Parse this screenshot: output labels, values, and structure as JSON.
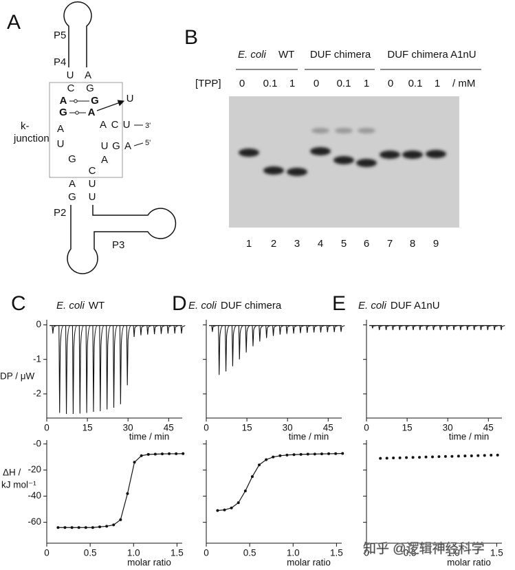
{
  "panel_a": {
    "label": "A",
    "stems": [
      "P5",
      "P4",
      "P2",
      "P3"
    ],
    "junction_label": [
      "k-",
      "junction"
    ],
    "ends": [
      "3'",
      "5'"
    ],
    "nucleotides": [
      "U",
      "A",
      "C",
      "G",
      "A",
      "G",
      "G",
      "A",
      "U",
      "A",
      "C",
      "U",
      "A",
      "U",
      "U",
      "G",
      "A",
      "A",
      "G",
      "C",
      "A",
      "U",
      "G",
      "U"
    ]
  },
  "panel_b": {
    "label": "B",
    "groups": [
      [
        "E. coli",
        "WT"
      ],
      [
        "DUF chimera"
      ],
      [
        "DUF chimera A1nU"
      ]
    ],
    "conc_header": "[TPP]",
    "concentrations": [
      "0",
      "0.1",
      "1",
      "0",
      "0.1",
      "1",
      "0",
      "0.1",
      "1"
    ],
    "unit": "/ mM",
    "lanes": [
      "1",
      "2",
      "3",
      "4",
      "5",
      "6",
      "7",
      "8",
      "9"
    ]
  },
  "chart_data": [
    {
      "type": "thermogram",
      "panel": "C",
      "title_italic": "E. coli",
      "title": "WT",
      "color": "#111",
      "x": [
        2,
        4.5,
        7,
        9.5,
        12,
        14.5,
        17,
        19.5,
        22,
        24.5,
        27,
        29.5,
        32,
        34.5,
        37,
        39.5,
        42,
        44.5,
        47,
        49.5
      ],
      "values": [
        -0.25,
        -2.55,
        -2.58,
        -2.58,
        -2.57,
        -2.55,
        -2.52,
        -2.5,
        -2.45,
        -2.4,
        -2.3,
        -1.75,
        -0.35,
        -0.3,
        -0.28,
        -0.27,
        -0.26,
        -0.25,
        -0.25,
        -0.25
      ],
      "xlim": [
        0,
        50
      ],
      "ylim": [
        -2.7,
        0.15
      ],
      "xticks": [
        0,
        15,
        30,
        45
      ],
      "yticks": [
        0,
        -1,
        -2
      ],
      "ytick_labels": true,
      "xlabel": "time / min",
      "ylabel": "DP / μW"
    },
    {
      "type": "thermogram",
      "panel": "D",
      "title_italic": "E. coli",
      "title": "DUF chimera",
      "color": "#111",
      "x": [
        2,
        4.5,
        7,
        9.5,
        12,
        14.5,
        17,
        19.5,
        22,
        24.5,
        27,
        29.5,
        32,
        34.5,
        37,
        39.5,
        42,
        44.5,
        47,
        49.5
      ],
      "values": [
        -0.2,
        -1.45,
        -1.35,
        -1.2,
        -1.0,
        -0.8,
        -0.62,
        -0.48,
        -0.38,
        -0.32,
        -0.28,
        -0.26,
        -0.25,
        -0.24,
        -0.23,
        -0.22,
        -0.22,
        -0.21,
        -0.21,
        -0.2
      ],
      "xlim": [
        0,
        50
      ],
      "ylim": [
        -2.7,
        0.15
      ],
      "xticks": [
        0,
        15,
        30,
        45
      ],
      "yticks": [
        0,
        -1,
        -2
      ],
      "ytick_labels": false,
      "xlabel": "time / min"
    },
    {
      "type": "thermogram",
      "panel": "E",
      "title_italic": "E. coli",
      "title": "DUF  A1nU",
      "color": "#111",
      "x": [
        2,
        4.5,
        7,
        9.5,
        12,
        14.5,
        17,
        19.5,
        22,
        24.5,
        27,
        29.5,
        32,
        34.5,
        37,
        39.5,
        42,
        44.5,
        47,
        49.5
      ],
      "values": [
        -0.1,
        -0.15,
        -0.15,
        -0.15,
        -0.15,
        -0.15,
        -0.15,
        -0.15,
        -0.15,
        -0.15,
        -0.15,
        -0.15,
        -0.15,
        -0.15,
        -0.15,
        -0.15,
        -0.15,
        -0.15,
        -0.15,
        -0.15
      ],
      "xlim": [
        0,
        50
      ],
      "ylim": [
        -2.7,
        0.15
      ],
      "xticks": [
        0,
        15,
        30,
        45
      ],
      "yticks": [
        0,
        -1,
        -2
      ],
      "ytick_labels": false,
      "xlabel": "time / min"
    },
    {
      "type": "isotherm",
      "fit": true,
      "color": "#111",
      "x": [
        0.13,
        0.21,
        0.29,
        0.37,
        0.45,
        0.53,
        0.61,
        0.69,
        0.77,
        0.85,
        0.93,
        1.01,
        1.09,
        1.17,
        1.25,
        1.33,
        1.41,
        1.49,
        1.57
      ],
      "values": [
        -64,
        -64,
        -64,
        -64,
        -64,
        -64,
        -63.5,
        -63,
        -62,
        -58,
        -38,
        -14,
        -9,
        -8,
        -7.8,
        -7.6,
        -7.5,
        -7.5,
        -7.4
      ],
      "xlim": [
        0,
        1.56
      ],
      "ylim": [
        -76,
        3
      ],
      "xticks": [
        0,
        0.5,
        {
          "value": 1,
          "label": "1.0"
        },
        1.5
      ],
      "yticks": [
        {
          "value": 0,
          "label": "-0"
        },
        -20,
        -40,
        -60
      ],
      "ytick_labels": true,
      "xlabel": "molar ratio",
      "ylabel": [
        "ΔH /",
        "kJ mol⁻¹"
      ]
    },
    {
      "type": "isotherm",
      "fit": true,
      "color": "#111",
      "x": [
        0.13,
        0.21,
        0.29,
        0.37,
        0.45,
        0.53,
        0.61,
        0.69,
        0.77,
        0.85,
        0.93,
        1.01,
        1.09,
        1.17,
        1.25,
        1.33,
        1.41,
        1.49,
        1.57
      ],
      "values": [
        -51,
        -50.5,
        -49,
        -45,
        -36,
        -25,
        -16,
        -12,
        -10,
        -9,
        -8.5,
        -8.2,
        -8,
        -7.8,
        -7.7,
        -7.6,
        -7.5,
        -7.4,
        -7.3
      ],
      "xlim": [
        0,
        1.56
      ],
      "ylim": [
        -76,
        3
      ],
      "xticks": [
        0,
        0.5,
        {
          "value": 1,
          "label": "1.0"
        },
        1.5
      ],
      "yticks": [
        0,
        -20,
        -40,
        -60
      ],
      "ytick_labels": false,
      "xlabel": "molar ratio"
    },
    {
      "type": "isotherm",
      "fit": false,
      "color": "#111",
      "x": [
        0.16,
        0.235,
        0.31,
        0.385,
        0.46,
        0.535,
        0.61,
        0.685,
        0.76,
        0.835,
        0.91,
        0.985,
        1.06,
        1.135,
        1.21,
        1.285,
        1.36,
        1.435,
        1.51
      ],
      "values": [
        -11,
        -10.9,
        -10.7,
        -10.6,
        -10.4,
        -10.3,
        -10.2,
        -10,
        -9.9,
        -9.7,
        -9.6,
        -9.5,
        -9.3,
        -9.2,
        -9.1,
        -8.9,
        -8.8,
        -8.6,
        -8.5
      ],
      "xlim": [
        0,
        1.56
      ],
      "ylim": [
        -76,
        3
      ],
      "xticks": [
        0,
        0.5,
        {
          "value": 1,
          "label": "1.0"
        },
        1.5
      ],
      "yticks": [
        0,
        -20,
        -40,
        -60
      ],
      "ytick_labels": false,
      "xlabel": "molar ratio"
    }
  ],
  "watermark": "知乎 @逻辑神经科学"
}
